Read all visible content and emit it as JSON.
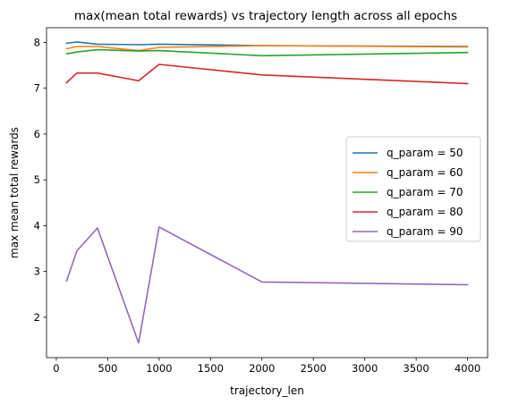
{
  "chart_data": {
    "type": "line",
    "title": "max(mean total rewards) vs trajectory length across all epochs",
    "xlabel": "trajectory_len",
    "ylabel": "max mean total rewards",
    "xlim": [
      -95,
      4195
    ],
    "ylim": [
      1.12,
      8.32
    ],
    "xticks": [
      0,
      500,
      1000,
      1500,
      2000,
      2500,
      3000,
      3500,
      4000
    ],
    "yticks": [
      2,
      3,
      4,
      5,
      6,
      7,
      8
    ],
    "x": [
      100,
      200,
      400,
      800,
      1000,
      2000,
      4000
    ],
    "legend_position": "center-right",
    "grid": false,
    "series": [
      {
        "name": "q_param = 50",
        "color": "#1f77b4",
        "values": [
          7.98,
          8.01,
          7.96,
          7.95,
          7.96,
          7.93,
          7.91
        ]
      },
      {
        "name": "q_param = 60",
        "color": "#ff7f0e",
        "values": [
          7.86,
          7.91,
          7.91,
          7.82,
          7.89,
          7.93,
          7.9
        ]
      },
      {
        "name": "q_param = 70",
        "color": "#2ca02c",
        "values": [
          7.75,
          7.79,
          7.84,
          7.81,
          7.82,
          7.71,
          7.78
        ]
      },
      {
        "name": "q_param = 80",
        "color": "#d62728",
        "values": [
          7.12,
          7.33,
          7.33,
          7.16,
          7.52,
          7.29,
          7.1
        ]
      },
      {
        "name": "q_param = 90",
        "color": "#9467bd",
        "values": [
          2.79,
          3.45,
          3.95,
          1.44,
          3.97,
          2.77,
          2.71
        ]
      }
    ]
  }
}
